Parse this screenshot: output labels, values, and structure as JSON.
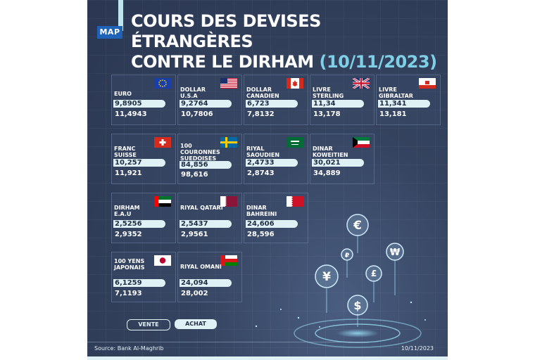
{
  "header": {
    "logo": "MAP",
    "title_line1": "COURS DES DEVISES ÉTRANGÈRES",
    "title_line2": "CONTRE LE DIRHAM",
    "title_date": "(10/11/2023)"
  },
  "currencies": [
    {
      "name": "EURO",
      "vente": "9,8905",
      "achat": "11,4943",
      "flag": "eu-flag"
    },
    {
      "name": "DOLLAR U.S.A",
      "vente": "9,2764",
      "achat": "10,7806",
      "flag": "us-flag"
    },
    {
      "name": "DOLLAR CANADIEN",
      "vente": "6,723",
      "achat": "7,8132",
      "flag": "canada-flag"
    },
    {
      "name": "LIVRE STERLING",
      "vente": "11,34",
      "achat": "13,178",
      "flag": "uk-flag"
    },
    {
      "name": "LIVRE GIBRALTAR",
      "vente": "11,341",
      "achat": "13,181",
      "flag": "gibraltar-flag"
    },
    {
      "name": "FRANC SUISSE",
      "vente": "10,257",
      "achat": "11,921",
      "flag": "swiss-flag"
    },
    {
      "name": "100 COURONNES SUEDOISES",
      "vente": "84,856",
      "achat": "98,616",
      "flag": "sweden-flag"
    },
    {
      "name": "RIYAL SAOUDIEN",
      "vente": "2,4733",
      "achat": "2,8743",
      "flag": "saudi-flag"
    },
    {
      "name": "DINAR KOWEITIEN",
      "vente": "30,021",
      "achat": "34,889",
      "flag": "kuwait-flag"
    },
    {
      "name": "DIRHAM E.A.U",
      "vente": "2,5256",
      "achat": "2,9352",
      "flag": "uae-flag"
    },
    {
      "name": "RIYAL QATARI",
      "vente": "2,5437",
      "achat": "2,9561",
      "flag": "qatar-flag"
    },
    {
      "name": "DINAR BAHREINI",
      "vente": "24,606",
      "achat": "28,596",
      "flag": "bahrain-flag"
    },
    {
      "name": "100 YENS JAPONAIS",
      "vente": "6,1259",
      "achat": "7,1193",
      "flag": "japan-flag"
    },
    {
      "name": "RIYAL OMANI",
      "vente": "24,094",
      "achat": "28,002",
      "flag": "oman-flag"
    }
  ],
  "legend": {
    "vente": "VENTE",
    "achat": "ACHAT"
  },
  "footer": {
    "source": "Source: Bank Al-Maghrib",
    "date": "10/11/2023"
  },
  "coin_symbols": [
    "€",
    "₽",
    "₩",
    "¥",
    "£",
    "$"
  ],
  "colors": {
    "accent": "#7fd0e6",
    "pill": "#dff1f5",
    "background": "#34435f"
  }
}
